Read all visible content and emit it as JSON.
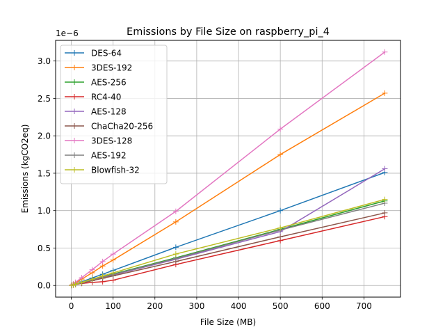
{
  "chart_data": {
    "type": "line",
    "title": "Emissions by File Size on raspberry_pi_4",
    "xlabel": "File Size (MB)",
    "ylabel": "Emissions (kgCO2eq)",
    "y_offset_label": "1e−6",
    "y_scale_multiplier": 1e-06,
    "xlim": [
      -37.5,
      787.5
    ],
    "ylim": [
      -0.156,
      3.276
    ],
    "x_ticks": [
      0,
      100,
      200,
      300,
      400,
      500,
      600,
      700
    ],
    "x_tick_labels": [
      "0",
      "100",
      "200",
      "300",
      "400",
      "500",
      "600",
      "700"
    ],
    "y_ticks": [
      0.0,
      0.5,
      1.0,
      1.5,
      2.0,
      2.5,
      3.0
    ],
    "y_tick_labels": [
      "0.0",
      "0.5",
      "1.0",
      "1.5",
      "2.0",
      "2.5",
      "3.0"
    ],
    "grid": true,
    "legend_position": "upper-left",
    "marker": "+",
    "x": [
      1,
      5,
      10,
      25,
      50,
      75,
      100,
      250,
      500,
      750
    ],
    "series": [
      {
        "name": "DES-64",
        "color": "#1f77b4",
        "values": [
          0.002,
          0.01,
          0.02,
          0.05,
          0.1,
          0.15,
          0.2,
          0.51,
          1.0,
          1.51
        ]
      },
      {
        "name": "3DES-192",
        "color": "#ff7f0e",
        "values": [
          0.004,
          0.017,
          0.034,
          0.085,
          0.17,
          0.26,
          0.34,
          0.85,
          1.75,
          2.57
        ]
      },
      {
        "name": "AES-256",
        "color": "#2ca02c",
        "values": [
          0.002,
          0.008,
          0.015,
          0.038,
          0.076,
          0.114,
          0.152,
          0.37,
          0.75,
          1.13
        ]
      },
      {
        "name": "RC4-40",
        "color": "#d62728",
        "values": [
          0.001,
          0.006,
          0.012,
          0.028,
          0.04,
          0.05,
          0.07,
          0.28,
          0.6,
          0.92
        ]
      },
      {
        "name": "AES-128",
        "color": "#9467bd",
        "values": [
          0.002,
          0.007,
          0.014,
          0.035,
          0.07,
          0.105,
          0.14,
          0.35,
          0.72,
          1.56
        ]
      },
      {
        "name": "ChaCha20-256",
        "color": "#8c564b",
        "values": [
          0.001,
          0.006,
          0.013,
          0.032,
          0.064,
          0.096,
          0.128,
          0.32,
          0.65,
          0.97
        ]
      },
      {
        "name": "3DES-128",
        "color": "#e377c2",
        "values": [
          0.004,
          0.021,
          0.042,
          0.105,
          0.21,
          0.32,
          0.42,
          0.99,
          2.09,
          3.12
        ]
      },
      {
        "name": "AES-192",
        "color": "#7f7f7f",
        "values": [
          0.002,
          0.007,
          0.015,
          0.037,
          0.074,
          0.11,
          0.147,
          0.36,
          0.74,
          1.1
        ]
      },
      {
        "name": "Blowfish-32",
        "color": "#bcbd22",
        "values": [
          0.002,
          0.008,
          0.017,
          0.042,
          0.084,
          0.126,
          0.168,
          0.42,
          0.77,
          1.15
        ]
      }
    ]
  }
}
